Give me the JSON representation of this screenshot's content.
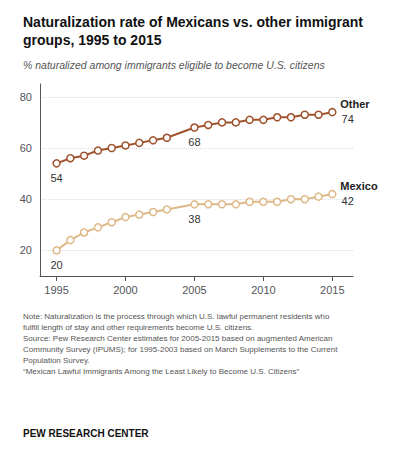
{
  "chart_data": {
    "type": "line",
    "title": "Naturalization rate of Mexicans vs. other immigrant\ngroups, 1995 to 2015",
    "subtitle": "% naturalized among immigrants eligible to become U.S. citizens",
    "note": "Note: Naturalization is the process through which U.S. lawful permanent residents who\nfulfill length of stay and other requirements become U.S. citizens.\nSource: Pew Research Center estimates for 2005-2015 based on augmented American\nCommunity Survey (IPUMS); for 1995-2003 based on March Supplements to the Current\nPopulation Survey.\n“Mexican Lawful Immigrants Among the Least Likely to Become U.S. Citizens”",
    "footer": "PEW RESEARCH CENTER",
    "x": [
      1995,
      1996,
      1997,
      1998,
      1999,
      2000,
      2001,
      2002,
      2003,
      2005,
      2006,
      2007,
      2008,
      2009,
      2010,
      2011,
      2012,
      2013,
      2014,
      2015
    ],
    "series": [
      {
        "name": "Other",
        "color": "#a0522d",
        "values": [
          54,
          56,
          57,
          59,
          60,
          61,
          62,
          63,
          64,
          68,
          69,
          70,
          70,
          71,
          71,
          72,
          72,
          73,
          73,
          74
        ],
        "annotations": [
          {
            "x": 1995,
            "text": "54"
          },
          {
            "x": 2005,
            "text": "68"
          },
          {
            "x": 2015,
            "text": "74"
          }
        ]
      },
      {
        "name": "Mexico",
        "color": "#deb887",
        "values": [
          20,
          24,
          27,
          29,
          31,
          33,
          34,
          35,
          36,
          38,
          38,
          38,
          38,
          39,
          39,
          39,
          40,
          40,
          41,
          42
        ],
        "annotations": [
          {
            "x": 1995,
            "text": "20"
          },
          {
            "x": 2005,
            "text": "38"
          },
          {
            "x": 2015,
            "text": "42"
          }
        ]
      }
    ],
    "xlim": [
      1993.8,
      2016.5
    ],
    "xticks": [
      1995,
      2000,
      2005,
      2010,
      2015
    ],
    "ylim": [
      10,
      85
    ],
    "yticks": [
      20,
      40,
      60,
      80
    ],
    "grid": true,
    "marker": "circle"
  }
}
